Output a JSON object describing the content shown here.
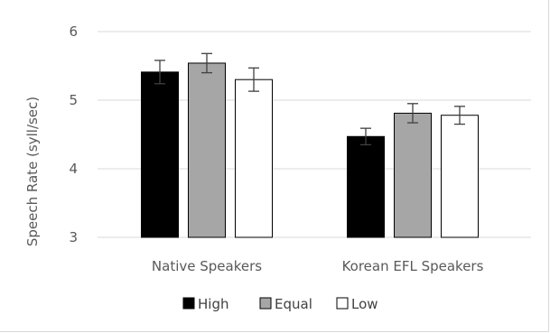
{
  "chart_data": {
    "type": "bar",
    "ylabel": "Speech Rate (syll/sec)",
    "xlabel": "",
    "ylim": [
      3,
      6
    ],
    "yticks": [
      "3",
      "4",
      "5",
      "6"
    ],
    "grid": true,
    "legend_position": "bottom",
    "categories": [
      "Native Speakers",
      "Korean EFL Speakers"
    ],
    "series": [
      {
        "name": "High",
        "color": "#000000",
        "values": [
          5.41,
          4.47
        ],
        "errors": [
          0.17,
          0.12
        ]
      },
      {
        "name": "Equal",
        "color": "#a6a6a6",
        "values": [
          5.54,
          4.81
        ],
        "errors": [
          0.14,
          0.14
        ]
      },
      {
        "name": "Low",
        "color": "#ffffff",
        "values": [
          5.3,
          4.78
        ],
        "errors": [
          0.17,
          0.13
        ]
      }
    ]
  }
}
